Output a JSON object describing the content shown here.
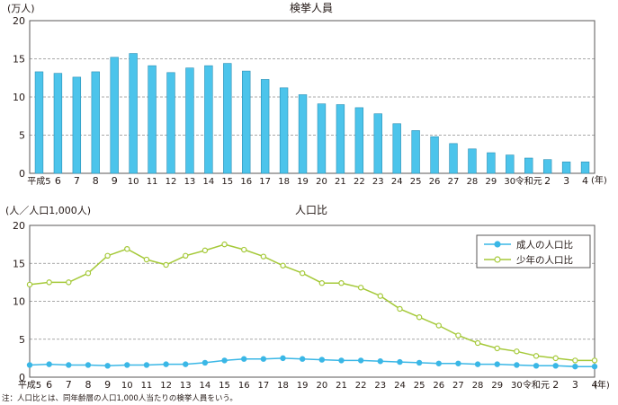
{
  "note": "注：人口比とは、同年齢層の人口1,000人当たりの検挙人員をいう。",
  "chart_data": [
    {
      "type": "bar",
      "title": "検挙人員",
      "ylabel": "(万人)",
      "xunit": "(年)",
      "categories": [
        "平成5",
        "6",
        "7",
        "8",
        "9",
        "10",
        "11",
        "12",
        "13",
        "14",
        "15",
        "16",
        "17",
        "18",
        "19",
        "20",
        "21",
        "22",
        "23",
        "24",
        "25",
        "26",
        "27",
        "28",
        "29",
        "30",
        "令和元",
        "2",
        "3",
        "4"
      ],
      "values": [
        13.3,
        13.1,
        12.6,
        13.3,
        15.2,
        15.7,
        14.1,
        13.2,
        13.8,
        14.1,
        14.4,
        13.4,
        12.3,
        11.2,
        10.3,
        9.1,
        9.0,
        8.6,
        7.8,
        6.5,
        5.6,
        4.8,
        3.9,
        3.2,
        2.7,
        2.4,
        2.0,
        1.8,
        1.5,
        1.5
      ],
      "ylim": [
        0,
        20
      ],
      "yticks": [
        0,
        5,
        10,
        15,
        20
      ],
      "colors": {
        "bar": "#4cc4eb",
        "bar_edge": "#2a8fb5",
        "grid": "#8c8c8c",
        "frame": "#595757"
      }
    },
    {
      "type": "line",
      "title": "人口比",
      "ylabel": "(人／人口1,000人)",
      "xunit": "(年)",
      "categories": [
        "平成5",
        "6",
        "7",
        "8",
        "9",
        "10",
        "11",
        "12",
        "13",
        "14",
        "15",
        "16",
        "17",
        "18",
        "19",
        "20",
        "21",
        "22",
        "23",
        "24",
        "25",
        "26",
        "27",
        "28",
        "29",
        "30",
        "令和元",
        "2",
        "3",
        "4"
      ],
      "ylim": [
        0,
        20
      ],
      "yticks": [
        0,
        5,
        10,
        15,
        20
      ],
      "legend_position": "top-right",
      "series": [
        {
          "name": "成人の人口比",
          "color": "#3ab7e6",
          "values": [
            1.6,
            1.7,
            1.6,
            1.6,
            1.5,
            1.6,
            1.6,
            1.7,
            1.7,
            1.9,
            2.2,
            2.4,
            2.4,
            2.5,
            2.4,
            2.3,
            2.2,
            2.2,
            2.1,
            2.0,
            1.9,
            1.8,
            1.8,
            1.7,
            1.7,
            1.6,
            1.5,
            1.5,
            1.4,
            1.4
          ]
        },
        {
          "name": "少年の人口比",
          "color": "#a5c939",
          "values": [
            12.2,
            12.5,
            12.5,
            13.7,
            16.0,
            16.9,
            15.5,
            14.8,
            16.0,
            16.7,
            17.5,
            16.8,
            15.9,
            14.7,
            13.7,
            12.4,
            12.4,
            11.8,
            10.7,
            9.0,
            7.9,
            6.8,
            5.5,
            4.5,
            3.8,
            3.4,
            2.8,
            2.5,
            2.2,
            2.2
          ]
        }
      ],
      "colors": {
        "grid": "#8c8c8c",
        "frame": "#595757"
      }
    }
  ]
}
